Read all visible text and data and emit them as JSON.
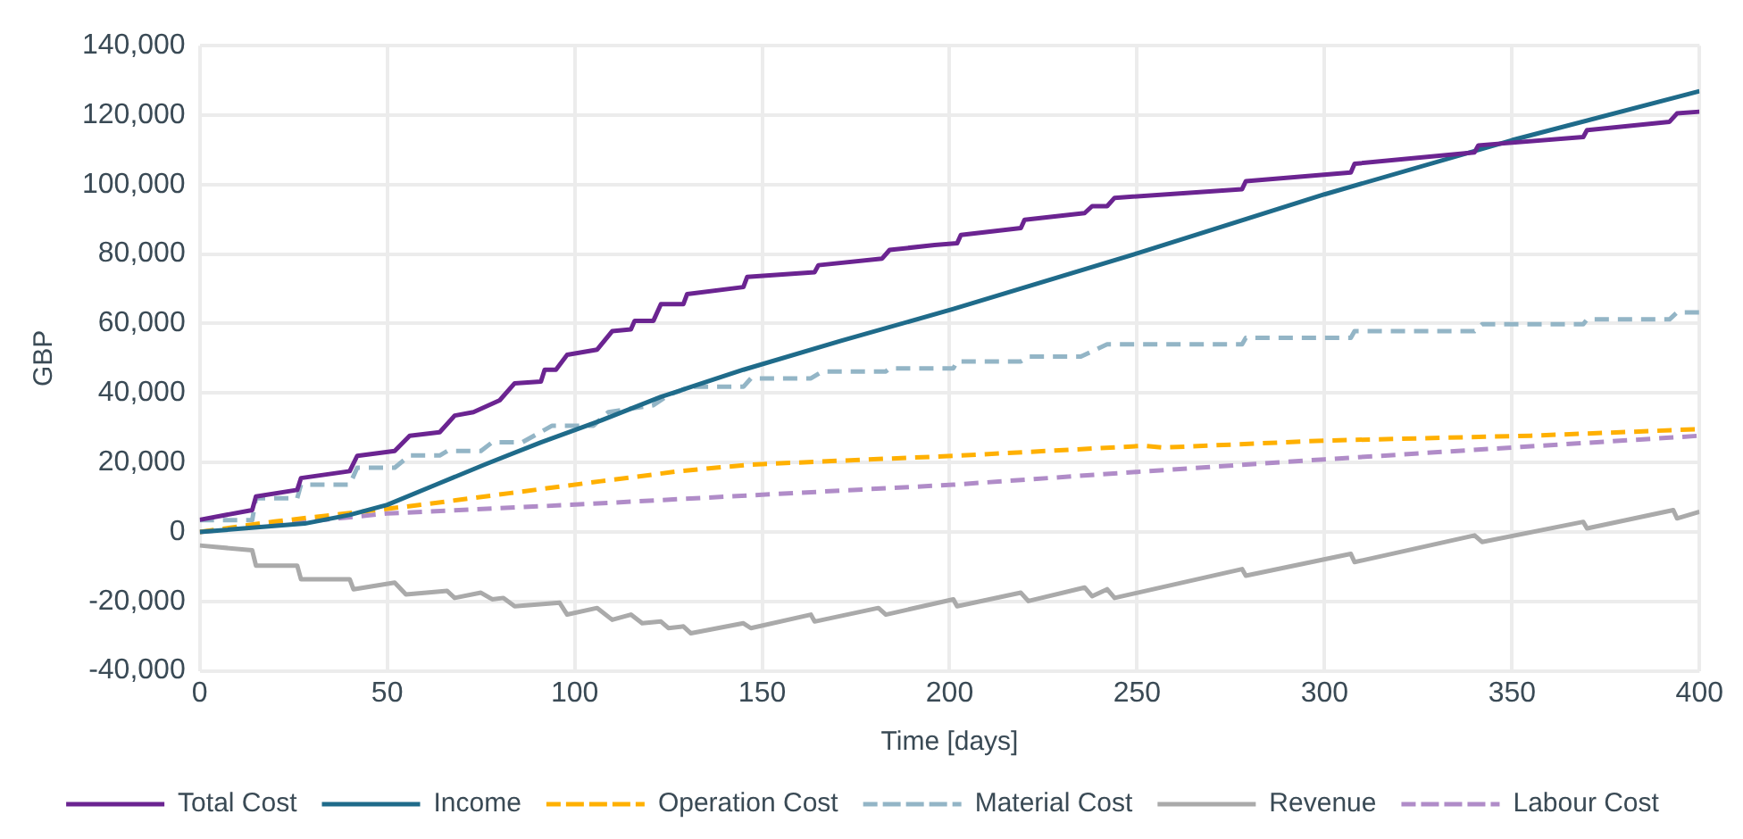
{
  "chart_data": {
    "type": "line",
    "xlabel": "Time [days]",
    "ylabel": "GBP",
    "xlim": [
      0,
      400
    ],
    "xticks": [
      0,
      50,
      100,
      150,
      200,
      250,
      300,
      350,
      400
    ],
    "ylim": [
      -40000,
      140000
    ],
    "yticks": [
      {
        "value": -40000,
        "label": "-40,000"
      },
      {
        "value": -20000,
        "label": "-20,000"
      },
      {
        "value": 0,
        "label": "0"
      },
      {
        "value": 20000,
        "label": "20,000"
      },
      {
        "value": 40000,
        "label": "40,000"
      },
      {
        "value": 60000,
        "label": "60,000"
      },
      {
        "value": 80000,
        "label": "80,000"
      },
      {
        "value": 100000,
        "label": "100,000"
      },
      {
        "value": 120000,
        "label": "120,000"
      },
      {
        "value": 140000,
        "label": "140,000"
      }
    ],
    "grid": true,
    "legend": "bottom",
    "marker": "none",
    "series": [
      {
        "name": "Total Cost",
        "color": "#6b2491",
        "line_style": "solid",
        "x": [
          0,
          14,
          15,
          26,
          27,
          40,
          42,
          52,
          56,
          64,
          68,
          73,
          80,
          84,
          91,
          92,
          95,
          98,
          106,
          110,
          115,
          116,
          121,
          123,
          129,
          130,
          145,
          146,
          164,
          165,
          182,
          184,
          196,
          202,
          203,
          219,
          220,
          236,
          238,
          242,
          244,
          278,
          279,
          307,
          308,
          340,
          341,
          369,
          370,
          392,
          394,
          400
        ],
        "values": [
          3500,
          6300,
          10200,
          12100,
          15500,
          17500,
          21900,
          23300,
          27700,
          28700,
          33500,
          34500,
          37900,
          42800,
          43300,
          46700,
          46700,
          51000,
          52500,
          57800,
          58300,
          60800,
          60800,
          65600,
          65600,
          68500,
          70500,
          73400,
          74800,
          76800,
          78700,
          81200,
          82600,
          83100,
          85500,
          87500,
          89900,
          91800,
          93800,
          93800,
          96200,
          98700,
          101000,
          103500,
          106000,
          109300,
          111300,
          113700,
          115700,
          118100,
          120500,
          121000
        ]
      },
      {
        "name": "Income",
        "color": "#1f6b8a",
        "line_style": "solid",
        "x": [
          0,
          28,
          40,
          50,
          63,
          76,
          91,
          107,
          123,
          145,
          171,
          201,
          250,
          300,
          350,
          400
        ],
        "values": [
          0,
          2400,
          4900,
          7800,
          13600,
          19400,
          25800,
          32100,
          38900,
          46700,
          55000,
          64200,
          80200,
          97200,
          112800,
          126900
        ]
      },
      {
        "name": "Operation Cost",
        "color": "#ffb000",
        "line_style": "dashed",
        "x": [
          0,
          20,
          39,
          59,
          83,
          107,
          128,
          147,
          201,
          252,
          257,
          300,
          355,
          400
        ],
        "values": [
          0,
          3000,
          5300,
          7800,
          11200,
          14600,
          17500,
          19400,
          21900,
          24800,
          24300,
          26300,
          27700,
          29600
        ]
      },
      {
        "name": "Material Cost",
        "color": "#93b5c6",
        "line_style": "dashed",
        "x": [
          0,
          14,
          15,
          26,
          27,
          40,
          42,
          52,
          56,
          64,
          66,
          75,
          78,
          86,
          90,
          94,
          105,
          109,
          121,
          125,
          131,
          145,
          147,
          163,
          166,
          183,
          184,
          201,
          202,
          219,
          221,
          235,
          242,
          278,
          279,
          307,
          308,
          340,
          342,
          369,
          370,
          392,
          394,
          400
        ],
        "values": [
          3400,
          3400,
          9700,
          9700,
          13600,
          13600,
          18500,
          18500,
          22000,
          22000,
          23300,
          23300,
          25800,
          25800,
          28200,
          30600,
          30600,
          34500,
          36500,
          39400,
          41800,
          41800,
          44200,
          44200,
          46200,
          46200,
          47100,
          47100,
          49100,
          49100,
          50500,
          50500,
          54000,
          54000,
          55900,
          55900,
          57800,
          57800,
          59800,
          59800,
          61200,
          61200,
          63200,
          63200
        ]
      },
      {
        "name": "Revenue",
        "color": "#aaaaaa",
        "line_style": "solid",
        "x": [
          0,
          14,
          15,
          26,
          27,
          40,
          41,
          52,
          55,
          66,
          68,
          75,
          78,
          81,
          84,
          96,
          98,
          106,
          110,
          115,
          118,
          123,
          125,
          129,
          131,
          145,
          147,
          163,
          164,
          181,
          183,
          201,
          202,
          219,
          221,
          236,
          238,
          242,
          244,
          278,
          279,
          307,
          308,
          340,
          342,
          369,
          370,
          393,
          394,
          400
        ],
        "values": [
          -3900,
          -5300,
          -9700,
          -9700,
          -13600,
          -13600,
          -16500,
          -14600,
          -18000,
          -17000,
          -19000,
          -17500,
          -19400,
          -19000,
          -21400,
          -20400,
          -23800,
          -21900,
          -25300,
          -23800,
          -26300,
          -25800,
          -27700,
          -27200,
          -29200,
          -26300,
          -27700,
          -23800,
          -25800,
          -21900,
          -23800,
          -19400,
          -21400,
          -17500,
          -19900,
          -16000,
          -18500,
          -16500,
          -19000,
          -10700,
          -12600,
          -6300,
          -8700,
          -1000,
          -2900,
          2900,
          1000,
          6300,
          3900,
          5800
        ]
      },
      {
        "name": "Labour Cost",
        "color": "#b08cc8",
        "line_style": "dashed",
        "x": [
          0,
          50,
          99,
          150,
          201,
          250,
          300,
          350,
          400
        ],
        "values": [
          0,
          5300,
          7800,
          10700,
          13600,
          17300,
          20900,
          24300,
          27700
        ]
      }
    ]
  }
}
